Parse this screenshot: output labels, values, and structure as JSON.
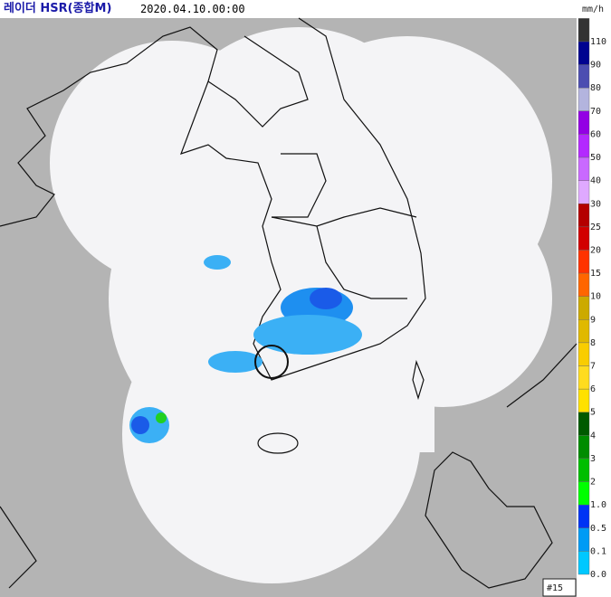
{
  "title": "레이더 HSR(종합M)",
  "timestamp": "2020.04.10.00:00",
  "frame_label": "#15",
  "legend": {
    "unit": "mm/h",
    "items": [
      {
        "label": "110",
        "color": "#333333"
      },
      {
        "label": "90",
        "color": "#000390"
      },
      {
        "label": "80",
        "color": "#4c4eb1"
      },
      {
        "label": "70",
        "color": "#b3b4de"
      },
      {
        "label": "60",
        "color": "#9300e4"
      },
      {
        "label": "50",
        "color": "#b329ff"
      },
      {
        "label": "40",
        "color": "#c969ff"
      },
      {
        "label": "30",
        "color": "#dfa9ff"
      },
      {
        "label": "25",
        "color": "#b40000"
      },
      {
        "label": "20",
        "color": "#d20000"
      },
      {
        "label": "15",
        "color": "#ff3300"
      },
      {
        "label": "10",
        "color": "#ff6600"
      },
      {
        "label": "9",
        "color": "#ccaa00"
      },
      {
        "label": "8",
        "color": "#e0b900"
      },
      {
        "label": "7",
        "color": "#f9cd00"
      },
      {
        "label": "6",
        "color": "#ffdc1f"
      },
      {
        "label": "5",
        "color": "#ffe100"
      },
      {
        "label": "4",
        "color": "#005a00"
      },
      {
        "label": "3",
        "color": "#008c00"
      },
      {
        "label": "2",
        "color": "#00be00"
      },
      {
        "label": "1.0",
        "color": "#00ff00"
      },
      {
        "label": "0.5",
        "color": "#0033f5"
      },
      {
        "label": "0.1",
        "color": "#009bf5"
      },
      {
        "label": "0.0",
        "color": "#00c8ff"
      }
    ]
  }
}
